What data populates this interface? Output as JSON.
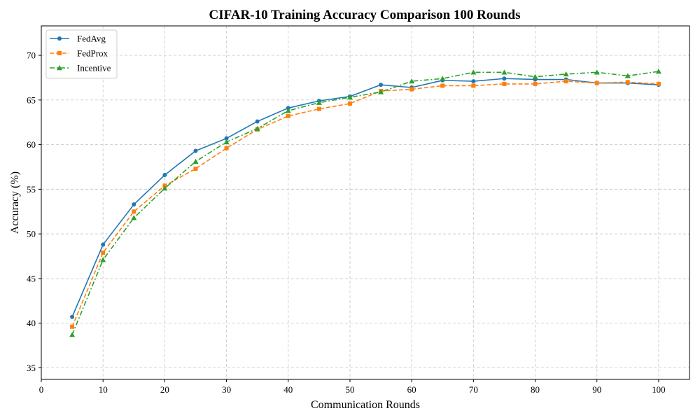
{
  "chart_data": {
    "type": "line",
    "title": "CIFAR-10 Training Accuracy Comparison 100 Rounds",
    "xlabel": "Communication Rounds",
    "ylabel": "Accuracy (%)",
    "xlim": [
      0,
      105
    ],
    "ylim": [
      33.7,
      73.3
    ],
    "xticks": [
      0,
      10,
      20,
      30,
      40,
      50,
      60,
      70,
      80,
      90,
      100
    ],
    "yticks": [
      35,
      40,
      45,
      50,
      55,
      60,
      65,
      70
    ],
    "grid": true,
    "legend_position": "top-left",
    "x": [
      5,
      10,
      15,
      20,
      25,
      30,
      35,
      40,
      45,
      50,
      55,
      60,
      65,
      70,
      75,
      80,
      85,
      90,
      95,
      100
    ],
    "series": [
      {
        "name": "FedAvg",
        "color": "#1f77b4",
        "line_style": "solid",
        "marker": "circle",
        "values": [
          40.7,
          48.8,
          53.3,
          56.6,
          59.3,
          60.7,
          62.6,
          64.1,
          64.9,
          65.4,
          66.7,
          66.4,
          67.2,
          67.1,
          67.4,
          67.3,
          67.3,
          66.9,
          66.9,
          66.7
        ]
      },
      {
        "name": "FedProx",
        "color": "#ff7f0e",
        "line_style": "dashed",
        "marker": "square",
        "values": [
          39.6,
          47.9,
          52.5,
          55.4,
          57.3,
          59.6,
          61.7,
          63.2,
          64.0,
          64.6,
          66.0,
          66.2,
          66.6,
          66.6,
          66.8,
          66.8,
          67.1,
          66.9,
          67.0,
          66.8
        ]
      },
      {
        "name": "Incentive",
        "color": "#2ca02c",
        "line_style": "dashdot",
        "marker": "triangle",
        "values": [
          38.7,
          47.1,
          51.8,
          55.1,
          58.1,
          60.3,
          61.8,
          63.8,
          64.7,
          65.3,
          65.9,
          67.1,
          67.4,
          68.1,
          68.1,
          67.6,
          67.9,
          68.1,
          67.7,
          68.2
        ]
      }
    ]
  }
}
